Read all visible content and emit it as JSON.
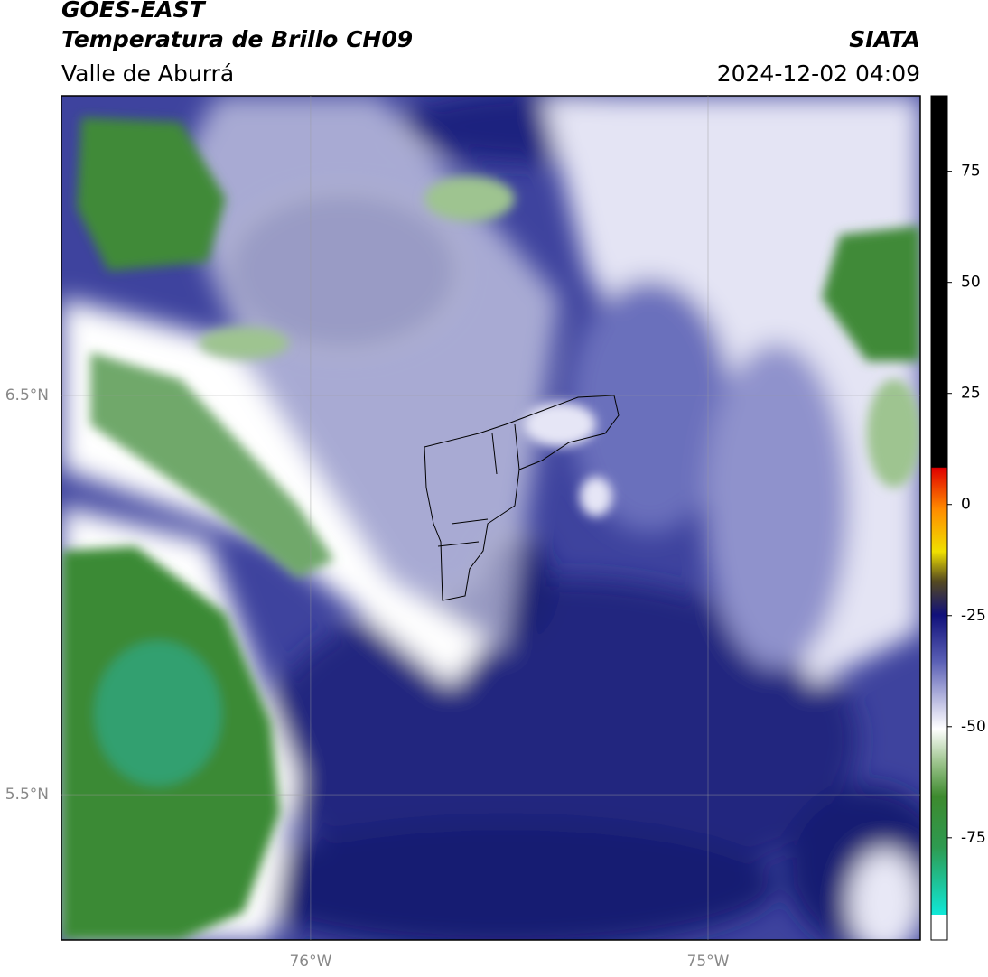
{
  "header": {
    "title": "GOES-EAST",
    "subtitle": "Temperatura de Brillo CH09",
    "region": "Valle de Aburrá",
    "source": "SIATA",
    "datetime": "2024-12-02 04:09"
  },
  "map": {
    "xlim": [
      -76.627,
      -74.466
    ],
    "ylim": [
      5.136,
      7.251
    ],
    "xticks": [
      {
        "value": -76,
        "label": "76°W"
      },
      {
        "value": -75,
        "label": "75°W"
      }
    ],
    "yticks": [
      {
        "value": 6.5,
        "label": "6.5°N"
      },
      {
        "value": 5.5,
        "label": "5.5°N"
      }
    ]
  },
  "colorbar": {
    "lim": [
      -98,
      92
    ],
    "ticks": [
      75,
      50,
      25,
      0,
      -25,
      -50,
      -75
    ]
  }
}
